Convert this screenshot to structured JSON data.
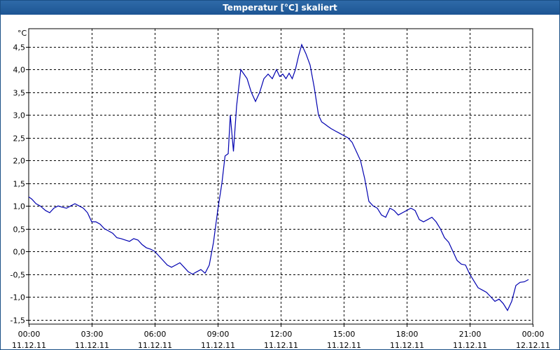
{
  "window": {
    "title": "Temperatur [°C] skaliert"
  },
  "chart_data": {
    "type": "line",
    "title": "Temperatur [°C] skaliert",
    "unit_label": "°C",
    "ylim": [
      -1.6,
      4.9
    ],
    "y_ticks": [
      -1.5,
      -1.0,
      -0.5,
      0.0,
      0.5,
      1.0,
      1.5,
      2.0,
      2.5,
      3.0,
      3.5,
      4.0,
      4.5
    ],
    "y_tick_labels": [
      "-1,5",
      "-1,0",
      "-0,5",
      "0,0",
      "0,5",
      "1,0",
      "1,5",
      "2,0",
      "2,5",
      "3,0",
      "3,5",
      "4,0",
      "4,5"
    ],
    "xlim": [
      0,
      24
    ],
    "x_ticks": [
      0,
      3,
      6,
      9,
      12,
      15,
      18,
      21,
      24
    ],
    "x_tick_labels": [
      [
        "00:00",
        "11.12.11"
      ],
      [
        "03:00",
        "11.12.11"
      ],
      [
        "06:00",
        "11.12.11"
      ],
      [
        "09:00",
        "11.12.11"
      ],
      [
        "12:00",
        "11.12.11"
      ],
      [
        "15:00",
        "11.12.11"
      ],
      [
        "18:00",
        "11.12.11"
      ],
      [
        "21:00",
        "11.12.11"
      ],
      [
        "00:00",
        "12.12.11"
      ]
    ],
    "grid": true,
    "line_color": "#0000b0",
    "series": [
      {
        "x": [
          0.0,
          0.15,
          0.35,
          0.55,
          0.8,
          1.0,
          1.2,
          1.4,
          1.6,
          1.8,
          2.0,
          2.2,
          2.4,
          2.6,
          2.8,
          3.0,
          3.2,
          3.4,
          3.6,
          3.8,
          4.0,
          4.2,
          4.4,
          4.6,
          4.8,
          5.0,
          5.2,
          5.4,
          5.6,
          5.8,
          6.0,
          6.2,
          6.4,
          6.6,
          6.8,
          7.0,
          7.2,
          7.4,
          7.6,
          7.8,
          8.0,
          8.2,
          8.4,
          8.6,
          8.8,
          9.0,
          9.2,
          9.35,
          9.5,
          9.6,
          9.75,
          9.9,
          10.0,
          10.1,
          10.25,
          10.4,
          10.6,
          10.8,
          11.0,
          11.2,
          11.4,
          11.6,
          11.8,
          11.95,
          12.1,
          12.25,
          12.4,
          12.55,
          12.7,
          12.85,
          13.0,
          13.2,
          13.4,
          13.6,
          13.8,
          13.95,
          14.1,
          14.25,
          14.4,
          14.6,
          14.8,
          15.0,
          15.2,
          15.4,
          15.6,
          15.8,
          16.0,
          16.2,
          16.4,
          16.6,
          16.8,
          17.0,
          17.2,
          17.4,
          17.6,
          17.8,
          18.0,
          18.2,
          18.4,
          18.6,
          18.8,
          19.0,
          19.2,
          19.4,
          19.6,
          19.8,
          20.0,
          20.2,
          20.4,
          20.6,
          20.8,
          21.0,
          21.2,
          21.4,
          21.6,
          21.8,
          22.0,
          22.2,
          22.4,
          22.6,
          22.8,
          23.0,
          23.2,
          23.4,
          23.6,
          23.8
        ],
        "y": [
          1.2,
          1.15,
          1.05,
          1.0,
          0.9,
          0.85,
          0.95,
          1.0,
          0.97,
          0.95,
          1.0,
          1.05,
          1.0,
          0.95,
          0.85,
          0.65,
          0.65,
          0.6,
          0.5,
          0.45,
          0.4,
          0.3,
          0.28,
          0.25,
          0.22,
          0.28,
          0.25,
          0.15,
          0.08,
          0.05,
          0.0,
          -0.1,
          -0.2,
          -0.3,
          -0.35,
          -0.3,
          -0.25,
          -0.35,
          -0.45,
          -0.5,
          -0.45,
          -0.4,
          -0.48,
          -0.3,
          0.2,
          0.9,
          1.5,
          2.1,
          2.15,
          3.0,
          2.2,
          3.2,
          3.6,
          4.0,
          3.9,
          3.8,
          3.5,
          3.3,
          3.5,
          3.8,
          3.9,
          3.8,
          4.0,
          3.85,
          3.9,
          3.8,
          3.92,
          3.8,
          4.0,
          4.3,
          4.55,
          4.35,
          4.1,
          3.6,
          3.0,
          2.85,
          2.8,
          2.75,
          2.7,
          2.65,
          2.6,
          2.55,
          2.5,
          2.4,
          2.2,
          2.0,
          1.6,
          1.1,
          1.0,
          0.95,
          0.8,
          0.75,
          0.95,
          0.9,
          0.8,
          0.85,
          0.9,
          0.95,
          0.9,
          0.7,
          0.65,
          0.7,
          0.75,
          0.65,
          0.5,
          0.3,
          0.2,
          0.0,
          -0.2,
          -0.28,
          -0.3,
          -0.5,
          -0.65,
          -0.8,
          -0.85,
          -0.9,
          -1.0,
          -1.1,
          -1.05,
          -1.15,
          -1.3,
          -1.1,
          -0.75,
          -0.68,
          -0.67,
          -0.62
        ]
      }
    ]
  }
}
